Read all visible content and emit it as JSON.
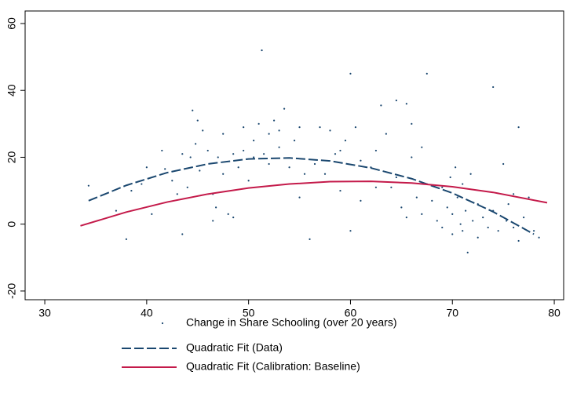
{
  "chart_data": {
    "type": "scatter",
    "xlim": [
      28.07,
      80.92
    ],
    "ylim": [
      -22.6,
      63.75
    ],
    "xticks": [
      30,
      40,
      50,
      60,
      70,
      80
    ],
    "yticks": [
      -20,
      0,
      20,
      40,
      60
    ],
    "series": [
      {
        "name": "Change in Share Schooling (over 20 years)",
        "kind": "scatter",
        "color": "#1a476f",
        "x": [
          34.3,
          37,
          38,
          38.5,
          39.5,
          40,
          40.5,
          41.5,
          41.8,
          42.5,
          43,
          43.5,
          43.5,
          44,
          44.3,
          44.5,
          44.8,
          45,
          45.2,
          45.5,
          46,
          46.5,
          46.5,
          46.8,
          47,
          47.5,
          47.5,
          48,
          48.5,
          48.5,
          49,
          49.5,
          49.5,
          50,
          50.5,
          50.5,
          51,
          51.3,
          51.5,
          52,
          52,
          52.5,
          53,
          53,
          53.5,
          54,
          54.5,
          55,
          55,
          55.5,
          56,
          56.5,
          57,
          57.5,
          58,
          58.5,
          59,
          59,
          59.5,
          60,
          60,
          60.5,
          61,
          61,
          62,
          62.5,
          62.5,
          63,
          63.5,
          64,
          64.5,
          64.5,
          65,
          65.5,
          65.5,
          66,
          66,
          66.5,
          67,
          67,
          67.5,
          67.5,
          68,
          68.5,
          69,
          69,
          69.5,
          69.8,
          70,
          70,
          70.3,
          70.5,
          70.8,
          71,
          71,
          71.3,
          71.5,
          71.8,
          72,
          72.5,
          72.5,
          73,
          73.5,
          74,
          74,
          74.5,
          75,
          75.3,
          75.5,
          76,
          76,
          76.5,
          76.5,
          77,
          77.5,
          78,
          78.5
        ],
        "y": [
          11.5,
          4,
          -4.5,
          10,
          12,
          17,
          3,
          22,
          16.5,
          13,
          9,
          21,
          -3,
          11,
          20,
          34,
          24,
          31,
          16,
          28,
          22,
          9,
          1,
          5,
          20,
          27,
          15,
          3,
          21,
          2,
          17,
          22,
          29,
          13,
          25,
          20,
          30,
          52,
          21,
          27,
          18,
          31,
          28,
          23,
          34.5,
          17,
          25,
          29,
          8,
          15,
          -4.5,
          18,
          29,
          15,
          28,
          21,
          22,
          10,
          25,
          45,
          -2,
          29,
          19,
          7,
          17,
          11,
          22,
          35.5,
          27,
          11,
          37,
          14,
          5,
          36,
          2,
          20,
          30,
          8,
          23,
          3,
          45,
          12,
          7,
          1,
          11,
          -1,
          5,
          14,
          3,
          -3,
          17,
          8,
          0,
          12,
          -2,
          4,
          -8.5,
          15,
          1,
          6,
          -4,
          2,
          -1,
          41,
          4,
          -2,
          18,
          1,
          6,
          9,
          -1,
          29,
          -5,
          2,
          8,
          -2,
          -4
        ]
      },
      {
        "name": "Quadratic Fit (Data)",
        "kind": "line",
        "dash": true,
        "color": "#1a476f",
        "x": [
          34.3,
          38,
          42,
          46,
          50,
          54,
          58,
          62,
          66,
          70,
          74,
          78
        ],
        "y": [
          7.0,
          11.6,
          15.4,
          18.0,
          19.5,
          19.8,
          18.9,
          16.8,
          13.6,
          9.3,
          3.7,
          -3.0
        ]
      },
      {
        "name": "Quadratic Fit (Calibration: Baseline)",
        "kind": "line",
        "dash": false,
        "color": "#c41a4a",
        "x": [
          33.5,
          38,
          42,
          46,
          50,
          54,
          58,
          62,
          66,
          70,
          74,
          79.3
        ],
        "y": [
          -0.5,
          3.6,
          6.6,
          9.0,
          10.8,
          12.0,
          12.7,
          12.8,
          12.3,
          11.2,
          9.5,
          6.4
        ]
      }
    ]
  }
}
